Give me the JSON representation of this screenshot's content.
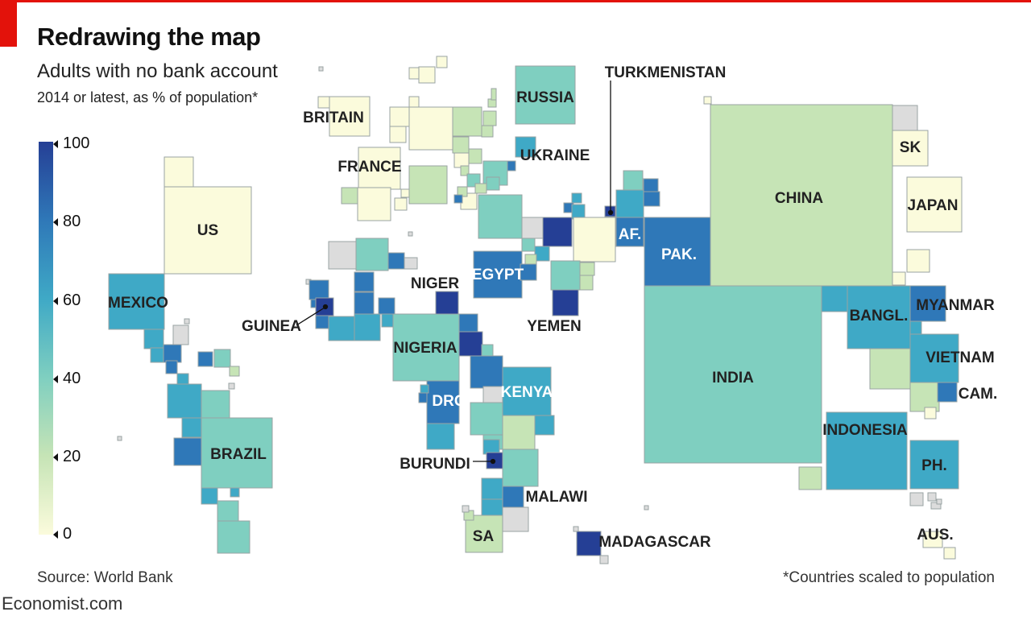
{
  "header": {
    "title": "Redrawing the map",
    "subtitle": "Adults with no bank account",
    "subtitle2": "2014 or latest, as % of population*"
  },
  "legend": {
    "ticks": [
      "100",
      "80",
      "60",
      "40",
      "20",
      "0"
    ],
    "colors": [
      "#fbfbdc",
      "#c6e4b6",
      "#7fcfc0",
      "#3fa9c6",
      "#2f78b8",
      "#253f95"
    ],
    "no_data_color": "#dcdcdc"
  },
  "labels": {
    "us": "US",
    "mexico": "MEXICO",
    "brazil": "BRAZIL",
    "britain": "BRITAIN",
    "france": "FRANCE",
    "russia": "RUSSIA",
    "ukraine": "UKRAINE",
    "turkmenistan": "TURKMENISTAN",
    "af": "AF.",
    "pak": "PAK.",
    "china": "CHINA",
    "sk": "SK",
    "japan": "JAPAN",
    "egypt": "EGYPT",
    "niger": "NIGER",
    "guinea": "GUINEA",
    "nigeria": "NIGERIA",
    "yemen": "YEMEN",
    "drc": "DRC",
    "kenya": "KENYA",
    "burundi": "BURUNDI",
    "malawi": "MALAWI",
    "sa": "SA",
    "madagascar": "MADAGASCAR",
    "india": "INDIA",
    "bangl": "BANGL.",
    "myanmar": "MYANMAR",
    "vietnam": "VIETNAM",
    "cam": "CAM.",
    "indonesia": "INDONESIA",
    "ph": "PH.",
    "aus": "AUS."
  },
  "footer": {
    "source": "Source: World Bank",
    "footnote": "*Countries scaled to population",
    "brand": "Economist.com"
  }
}
